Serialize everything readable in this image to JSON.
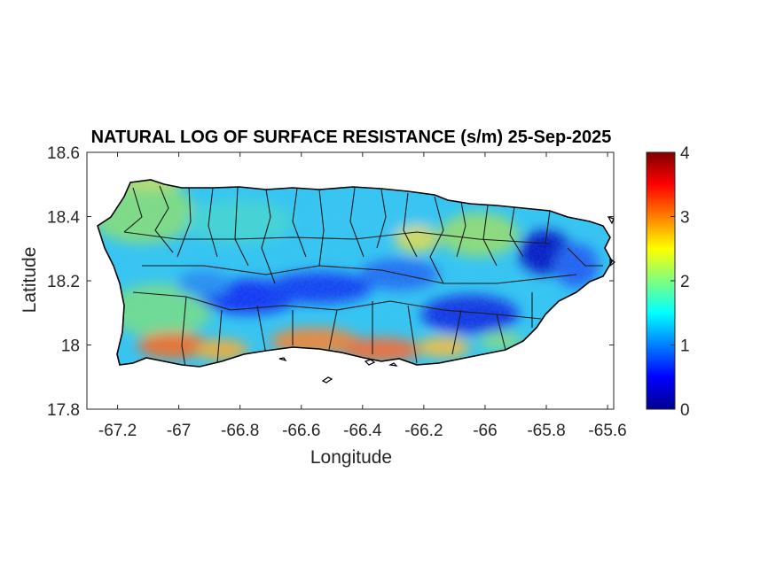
{
  "figure": {
    "title": "NATURAL LOG OF SURFACE RESISTANCE (s/m) 25-Sep-2025",
    "xlabel": "Longitude",
    "ylabel": "Latitude"
  },
  "axes": {
    "x_ticks": [
      "-67.2",
      "-67",
      "-66.8",
      "-66.6",
      "-66.4",
      "-66.2",
      "-66",
      "-65.8",
      "-65.6"
    ],
    "y_ticks": [
      "18.6",
      "18.4",
      "18.2",
      "18",
      "17.8"
    ]
  },
  "colorbar": {
    "ticks": [
      "4",
      "3",
      "2",
      "1",
      "0"
    ],
    "colormap": "jet"
  },
  "chart_data": {
    "type": "heatmap",
    "title": "NATURAL LOG OF SURFACE RESISTANCE (s/m) 25-Sep-2025",
    "xlabel": "Longitude",
    "ylabel": "Latitude",
    "xlim": [
      -67.3,
      -65.58
    ],
    "ylim": [
      17.8,
      18.6
    ],
    "x_ticks": [
      -67.2,
      -67,
      -66.8,
      -66.6,
      -66.4,
      -66.2,
      -66,
      -65.8,
      -65.6
    ],
    "y_ticks": [
      17.8,
      18,
      18.2,
      18.4,
      18.6
    ],
    "clim": [
      0,
      4
    ],
    "colorbar_ticks": [
      0,
      1,
      2,
      3,
      4
    ],
    "colormap": "jet",
    "grid": false,
    "region": "Puerto Rico (municipality boundaries)",
    "approximate_values": {
      "central_mountain_ridge_low_band": 0.5,
      "eastern_peak_low_area_near_-65.8": 0.3,
      "south_coast_high_band": 3.3,
      "northern_and_western_plains": 1.6,
      "northwest_interior_patches": 2.2
    }
  }
}
